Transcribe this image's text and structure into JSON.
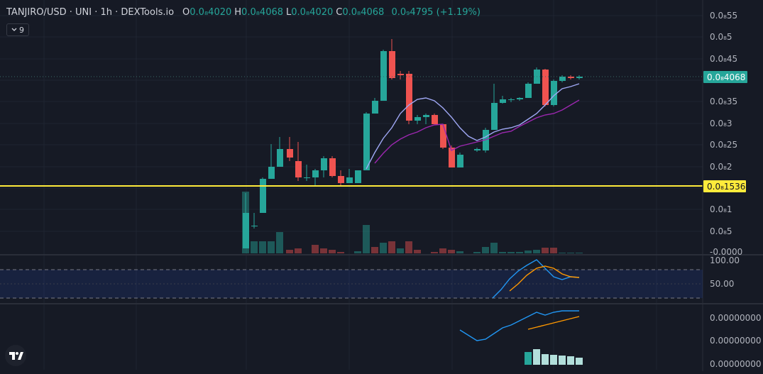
{
  "legend": {
    "symbol": "TANJIRO/USD · UNI · 1h · DEXTools.io",
    "open_label": "O",
    "open_value": "0.0₈4020",
    "high_label": "H",
    "high_value": "0.0₈4068",
    "low_label": "L",
    "low_value": "0.0₈4020",
    "close_label": "C",
    "close_value": "0.0₈4068",
    "change_value": "0.0₉4795 (+1.19%)"
  },
  "indicator_toggle": {
    "icon": "chevron-down-icon",
    "count": "9"
  },
  "price_axis": {
    "ticks": [
      "0.0₈55",
      "0.0₈5",
      "0.0₈45",
      "0.0₈35",
      "0.0₈3",
      "0.0₈25",
      "0.0₈2",
      "0.0₈1",
      "0.0₈5",
      "-0.0000"
    ],
    "current_price_label": "0.0₈4068",
    "line_price_label": "0.0₈1536"
  },
  "rsi_axis": {
    "ticks": [
      "100.00",
      "50.00"
    ]
  },
  "macd_axis": {
    "ticks": [
      "0.00000000",
      "0.00000000",
      "0.00000000"
    ]
  },
  "colors": {
    "background": "#161a25",
    "up": "#26a69a",
    "down": "#ef5350",
    "ma_fast": "#a0a8f5",
    "ma_slow": "#9c27b0",
    "ma_mid": "#2962ff",
    "horizontal_line": "#ffeb3b",
    "rsi_line": "#2196f3",
    "rsi_signal": "#ff9800",
    "macd_line": "#2196f3",
    "signal_line": "#ff9800",
    "histogram": "#b2dfdb"
  },
  "logo": {
    "icon": "tradingview-logo-icon"
  }
}
